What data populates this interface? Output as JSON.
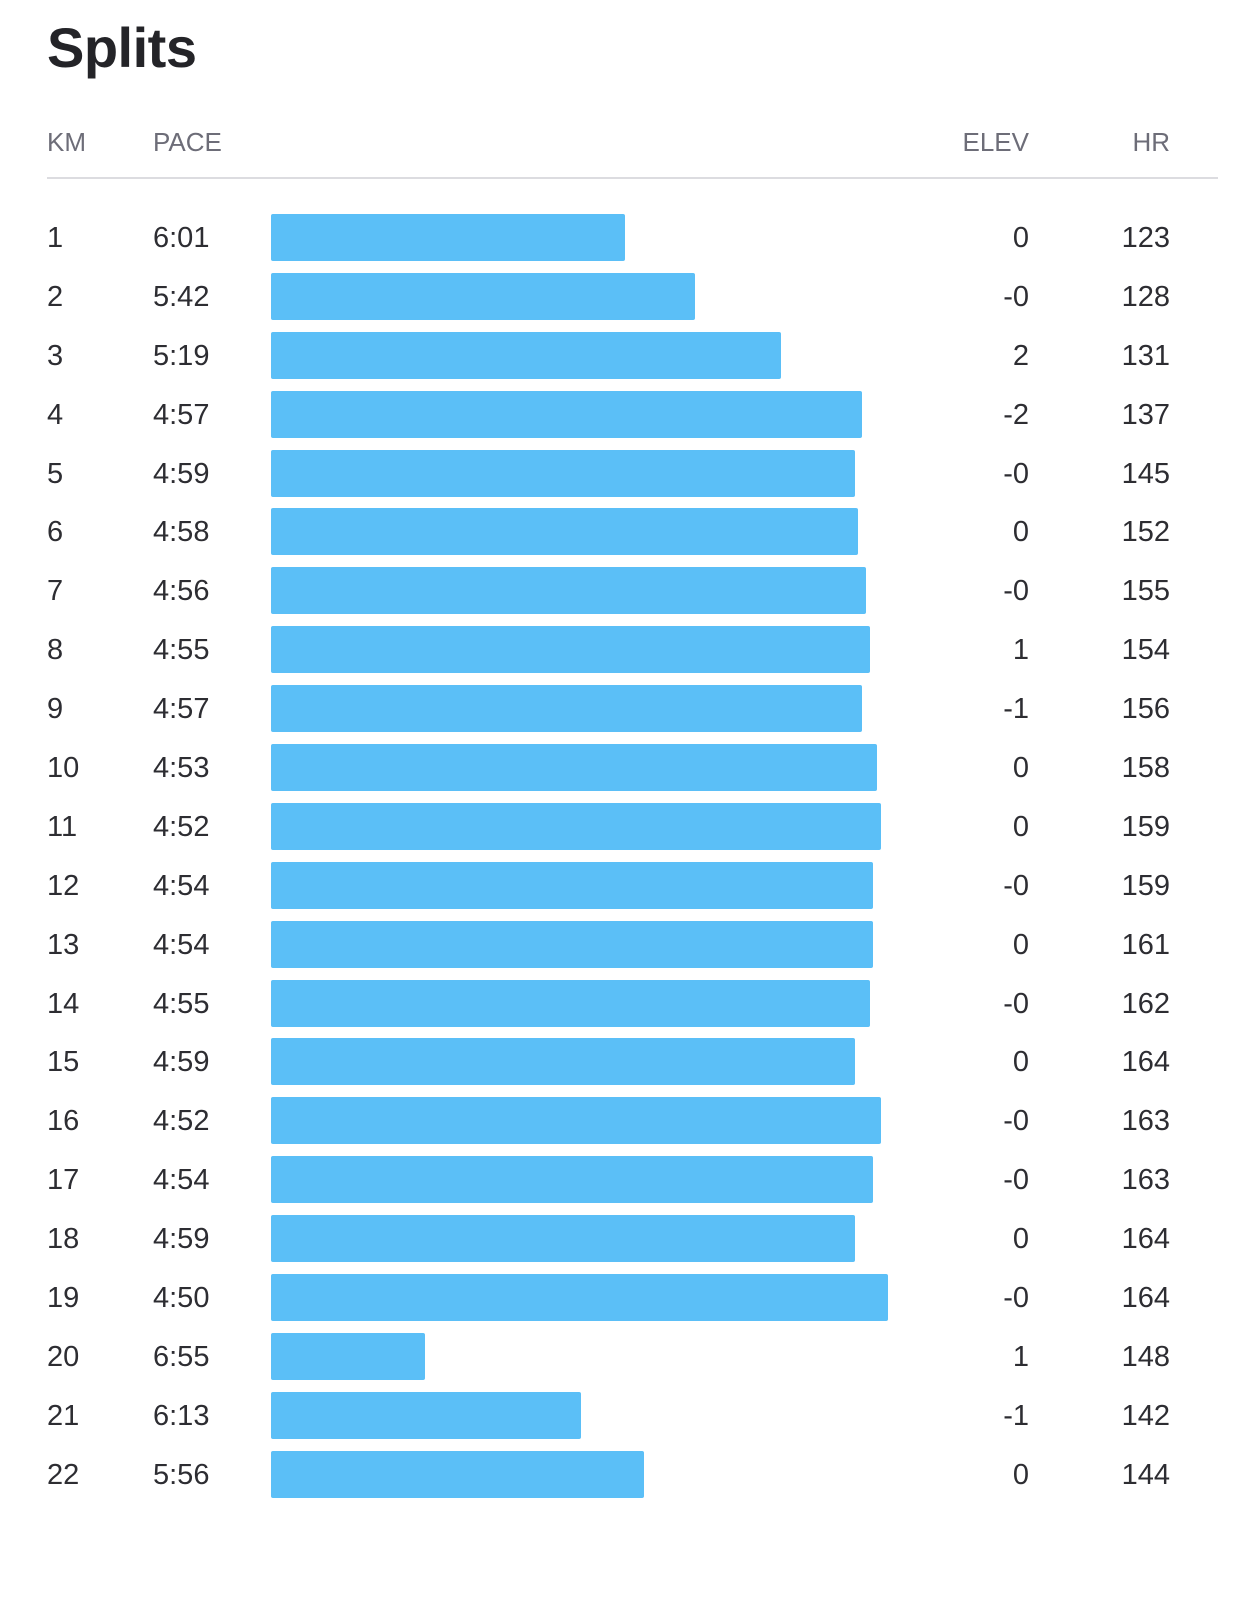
{
  "title": "Splits",
  "columns": {
    "km": "KM",
    "pace": "PACE",
    "elev": "ELEV",
    "hr": "HR"
  },
  "colors": {
    "bar": "#5bbff7",
    "header_text": "#6d6d78",
    "divider": "#dcdce0"
  },
  "chart_data": {
    "type": "bar",
    "orientation": "horizontal",
    "title": "Splits",
    "categories": [
      "1",
      "2",
      "3",
      "4",
      "5",
      "6",
      "7",
      "8",
      "9",
      "10",
      "11",
      "12",
      "13",
      "14",
      "15",
      "16",
      "17",
      "18",
      "19",
      "20",
      "21",
      "22"
    ],
    "pace_labels": [
      "6:01",
      "5:42",
      "5:19",
      "4:57",
      "4:59",
      "4:58",
      "4:56",
      "4:55",
      "4:57",
      "4:53",
      "4:52",
      "4:54",
      "4:54",
      "4:55",
      "4:59",
      "4:52",
      "4:54",
      "4:59",
      "4:50",
      "6:55",
      "6:13",
      "5:56"
    ],
    "pace_seconds": [
      361,
      342,
      319,
      297,
      299,
      298,
      296,
      295,
      297,
      293,
      292,
      294,
      294,
      295,
      299,
      292,
      294,
      299,
      290,
      415,
      373,
      356
    ],
    "elev": [
      "0",
      "-0",
      "2",
      "-2",
      "-0",
      "0",
      "-0",
      "1",
      "-1",
      "0",
      "0",
      "-0",
      "0",
      "-0",
      "0",
      "-0",
      "-0",
      "0",
      "-0",
      "1",
      "-1",
      "0"
    ],
    "hr": [
      "123",
      "128",
      "131",
      "137",
      "145",
      "152",
      "155",
      "154",
      "156",
      "158",
      "159",
      "159",
      "161",
      "162",
      "164",
      "163",
      "163",
      "164",
      "164",
      "148",
      "142",
      "144"
    ]
  }
}
